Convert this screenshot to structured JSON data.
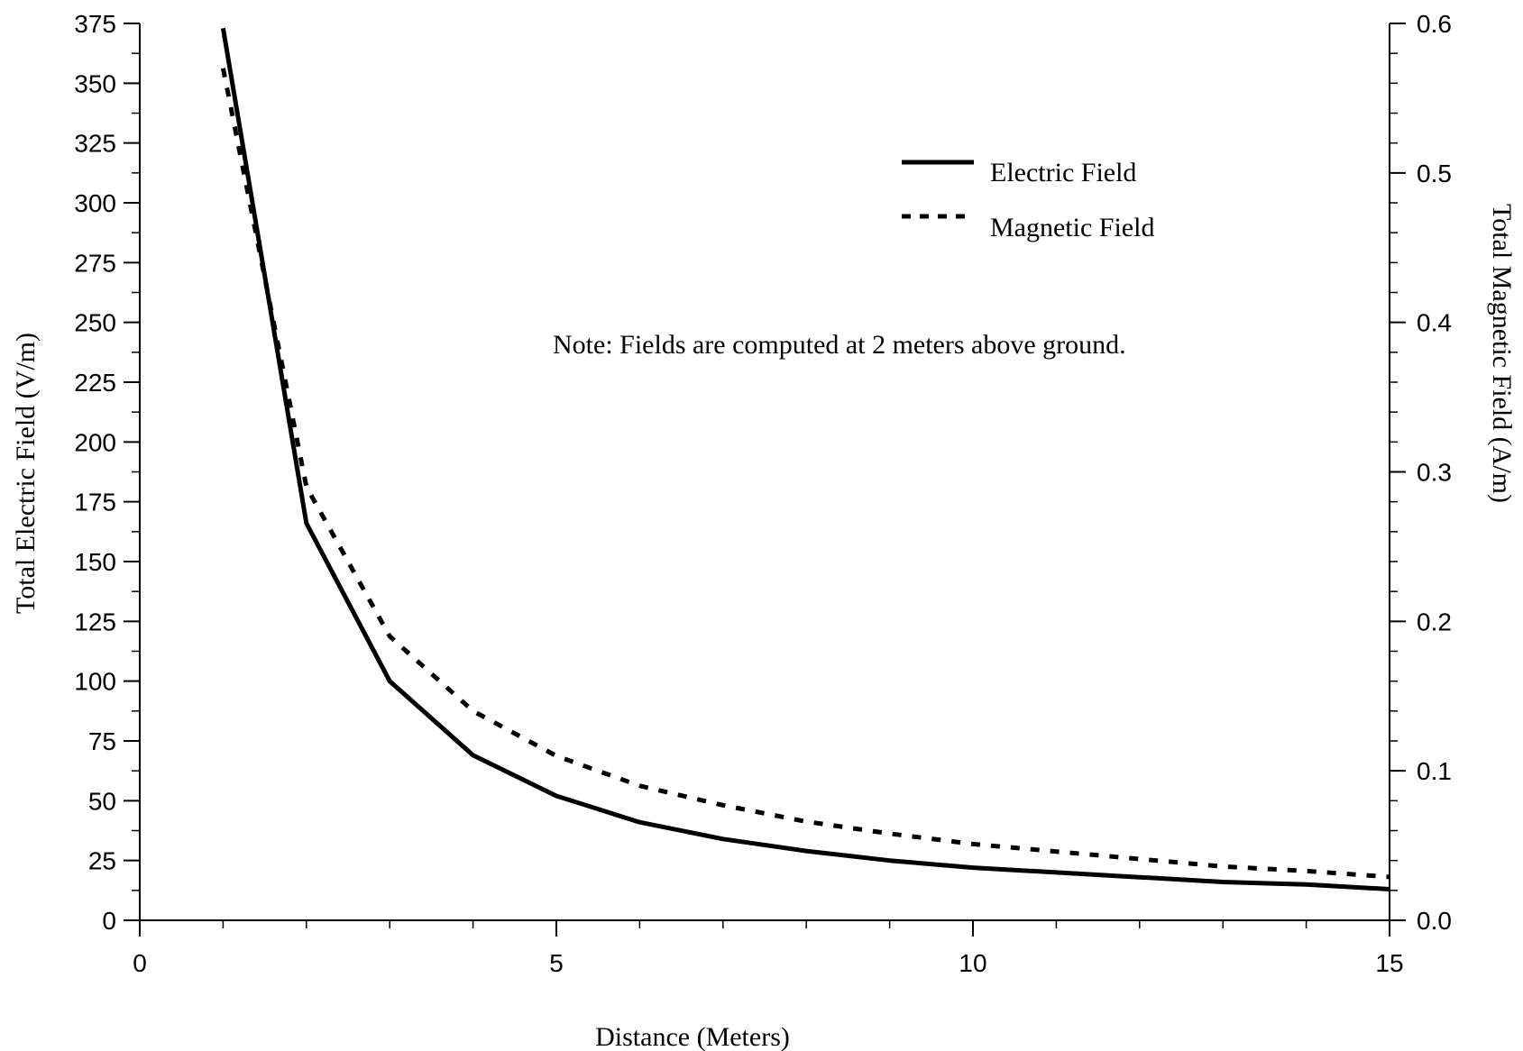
{
  "chart_data": {
    "type": "line",
    "xlabel": "Distance (Meters)",
    "ylabel": "Total Electric Field (V/m)",
    "y2label": "Total Magnetic Field (A/m)",
    "annotation": "Note: Fields are computed at 2 meters above ground.",
    "xlim": [
      0,
      15
    ],
    "ylim": [
      0,
      375
    ],
    "y2lim": [
      0,
      0.6
    ],
    "xticks": [
      0,
      5,
      10,
      15
    ],
    "xticks_labels": [
      "0",
      "5",
      "10",
      "15"
    ],
    "yticks": [
      0,
      25,
      50,
      75,
      100,
      125,
      150,
      175,
      200,
      225,
      250,
      275,
      300,
      325,
      350,
      375
    ],
    "yticks_labels": [
      "0",
      "25",
      "50",
      "75",
      "100",
      "125",
      "150",
      "175",
      "200",
      "225",
      "250",
      "275",
      "300",
      "325",
      "350",
      "375"
    ],
    "y2ticks": [
      0.0,
      0.1,
      0.2,
      0.3,
      0.4,
      0.5,
      0.6
    ],
    "y2ticks_labels": [
      "0.0",
      "0.1",
      "0.2",
      "0.3",
      "0.4",
      "0.5",
      "0.6"
    ],
    "grid": false,
    "legend_position": "top-right",
    "series": [
      {
        "name": "Electric Field",
        "axis": "left",
        "style": "solid",
        "x": [
          1,
          2,
          3,
          4,
          5,
          6,
          7,
          8,
          9,
          10,
          11,
          12,
          13,
          14,
          15
        ],
        "y": [
          373,
          166,
          100,
          69,
          52,
          41,
          34,
          29,
          25,
          22,
          20,
          18,
          16,
          15,
          13
        ]
      },
      {
        "name": "Magnetic Field",
        "axis": "right",
        "style": "dotted",
        "x": [
          1,
          2,
          3,
          4,
          5,
          6,
          7,
          8,
          9,
          10,
          11,
          12,
          13,
          14,
          15
        ],
        "y": [
          0.57,
          0.29,
          0.19,
          0.14,
          0.11,
          0.09,
          0.077,
          0.066,
          0.058,
          0.051,
          0.046,
          0.041,
          0.036,
          0.033,
          0.029
        ]
      }
    ]
  }
}
